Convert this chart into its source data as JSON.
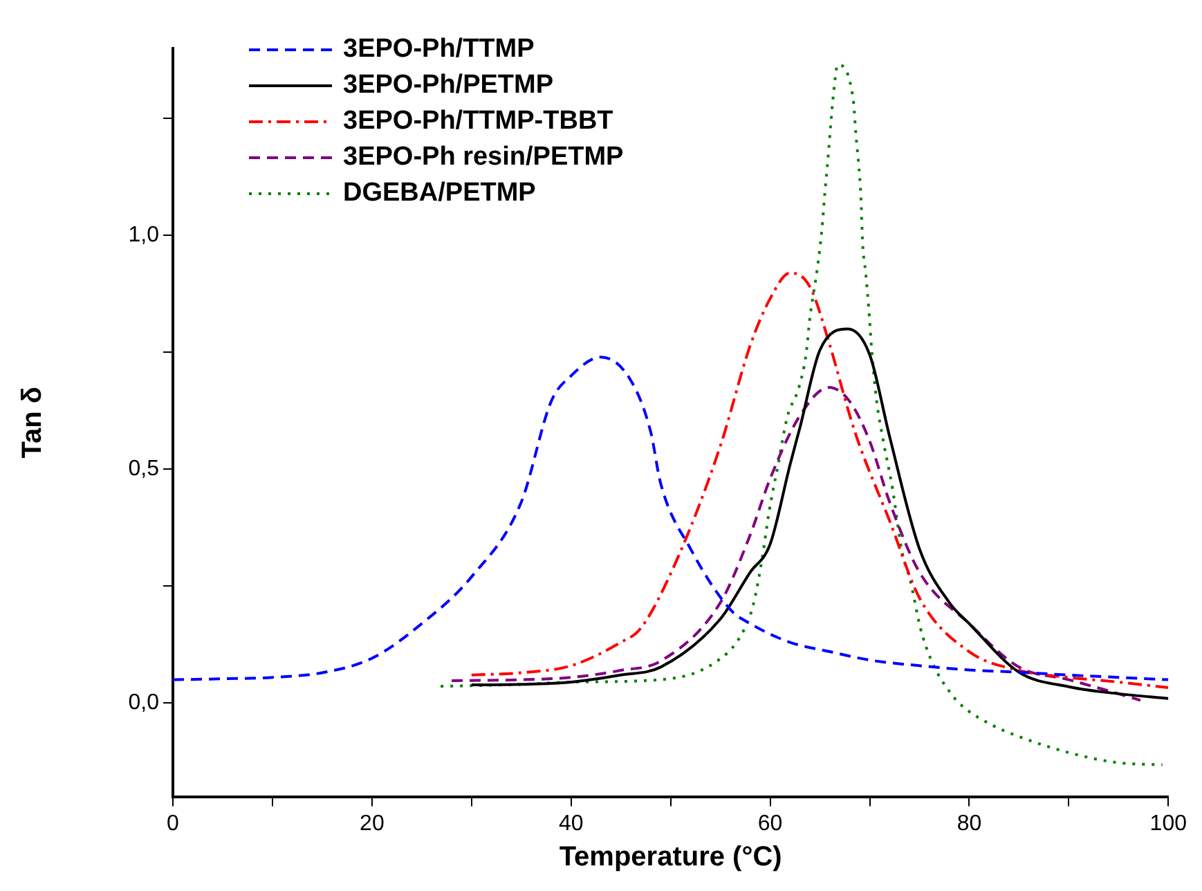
{
  "chart_data": {
    "type": "line",
    "xlabel": "Temperature (°C)",
    "ylabel": "Tan δ",
    "xlim": [
      0,
      100
    ],
    "xticks": [
      0,
      {
        "value": 10,
        "label": null
      },
      20,
      {
        "value": 30,
        "label": null
      },
      40,
      {
        "value": 50,
        "label": null
      },
      60,
      {
        "value": 70,
        "label": null
      },
      80,
      {
        "value": 90,
        "label": null
      },
      100
    ],
    "ylim": [
      -0.2,
      1.4
    ],
    "yticks": [
      {
        "value": 0,
        "label": "0,0"
      },
      {
        "value": 0.25,
        "label": null
      },
      {
        "value": 0.5,
        "label": "0,5"
      },
      {
        "value": 0.75,
        "label": null
      },
      {
        "value": 1,
        "label": "1,0"
      },
      {
        "value": 1.25,
        "label": null
      }
    ],
    "grid": false,
    "legend": "top left",
    "marker": "none",
    "series": [
      {
        "name": "3EPO-Ph/TTMP",
        "color": "#0000ff",
        "line_style": "dashed",
        "x": [
          0,
          5,
          10,
          15,
          20,
          25,
          30,
          35,
          38,
          40,
          43,
          46,
          48,
          49,
          52,
          56,
          58,
          62,
          66,
          70,
          75,
          80,
          85,
          90,
          95,
          100
        ],
        "values": [
          0.05,
          0.052,
          0.055,
          0.065,
          0.096,
          0.17,
          0.27,
          0.43,
          0.645,
          0.7,
          0.74,
          0.69,
          0.58,
          0.47,
          0.33,
          0.2,
          0.17,
          0.13,
          0.11,
          0.092,
          0.08,
          0.071,
          0.066,
          0.06,
          0.055,
          0.05
        ]
      },
      {
        "name": "3EPO-Ph/PETMP",
        "color": "#000000",
        "line_style": "solid",
        "x": [
          30,
          35,
          40,
          45,
          49,
          55,
          58,
          60,
          62,
          63,
          65,
          67.8,
          70,
          72,
          75,
          78,
          80,
          85,
          90,
          95,
          100
        ],
        "values": [
          0.039,
          0.04,
          0.045,
          0.06,
          0.077,
          0.18,
          0.28,
          0.34,
          0.51,
          0.59,
          0.755,
          0.8,
          0.745,
          0.57,
          0.33,
          0.215,
          0.17,
          0.066,
          0.035,
          0.02,
          0.01
        ]
      },
      {
        "name": "3EPO-Ph/TTMP-TBBT",
        "color": "#ff0000",
        "line_style": "dashdot",
        "x": [
          30,
          35,
          40,
          45,
          47,
          50.7,
          55,
          58,
          60,
          62,
          64,
          66,
          68,
          69,
          72,
          75,
          80,
          85,
          90,
          95,
          100
        ],
        "values": [
          0.06,
          0.065,
          0.08,
          0.13,
          0.16,
          0.31,
          0.55,
          0.765,
          0.865,
          0.92,
          0.89,
          0.765,
          0.615,
          0.55,
          0.39,
          0.225,
          0.11,
          0.07,
          0.055,
          0.045,
          0.033
        ]
      },
      {
        "name": "3EPO-Ph resin/PETMP",
        "color": "#800080",
        "line_style": "dashed",
        "x": [
          28,
          35,
          40,
          45,
          49,
          55,
          58,
          60,
          63,
          65.9,
          68,
          70,
          72,
          75,
          80,
          85,
          90,
          95,
          97.2
        ],
        "values": [
          0.048,
          0.05,
          0.055,
          0.07,
          0.09,
          0.215,
          0.36,
          0.48,
          0.615,
          0.675,
          0.645,
          0.56,
          0.43,
          0.28,
          0.17,
          0.077,
          0.05,
          0.02,
          0.006
        ]
      },
      {
        "name": "DGEBA/PETMP",
        "color": "#008000",
        "line_style": "dotted",
        "x": [
          26.9,
          35,
          40,
          48.9,
          54.4,
          57.1,
          58.3,
          59.2,
          59.9,
          60.8,
          61.7,
          62.9,
          63.6,
          64,
          64.7,
          65.2,
          65.5,
          65.8,
          66.1,
          66.3,
          66.8,
          67.7,
          68.2,
          68.4,
          68.6,
          68.9,
          69.1,
          69.3,
          69.6,
          69.9,
          70.2,
          70.7,
          71.4,
          72.3,
          73.2,
          74.1,
          75.1,
          76.2,
          78.1,
          79.4,
          82.4,
          85.7,
          90.2,
          94.8,
          99.4
        ],
        "values": [
          0.036,
          0.04,
          0.045,
          0.05,
          0.086,
          0.146,
          0.21,
          0.31,
          0.41,
          0.51,
          0.61,
          0.676,
          0.745,
          0.825,
          0.924,
          1.013,
          1.092,
          1.162,
          1.241,
          1.29,
          1.365,
          1.35,
          1.31,
          1.28,
          1.22,
          1.15,
          1.09,
          0.98,
          0.92,
          0.845,
          0.755,
          0.646,
          0.557,
          0.458,
          0.329,
          0.26,
          0.16,
          0.091,
          0.022,
          -0.008,
          -0.048,
          -0.077,
          -0.107,
          -0.127,
          -0.132
        ]
      }
    ]
  }
}
